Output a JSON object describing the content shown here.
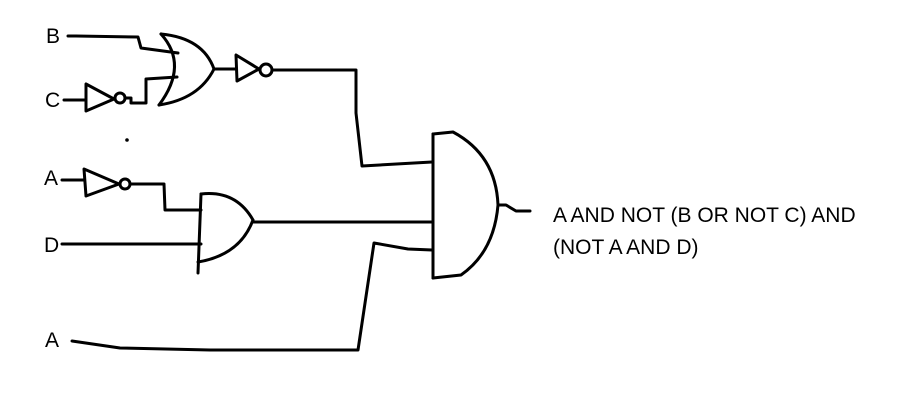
{
  "inputs": {
    "b": "B",
    "c": "C",
    "a1": "A",
    "d": "D",
    "a2": "A"
  },
  "output": {
    "line1": "A AND NOT (B OR NOT C) AND",
    "line2": "(NOT A AND D)"
  },
  "gates": [
    "not",
    "or",
    "not",
    "not",
    "and",
    "and"
  ],
  "colors": {
    "ink": "#000000",
    "background": "#ffffff"
  }
}
